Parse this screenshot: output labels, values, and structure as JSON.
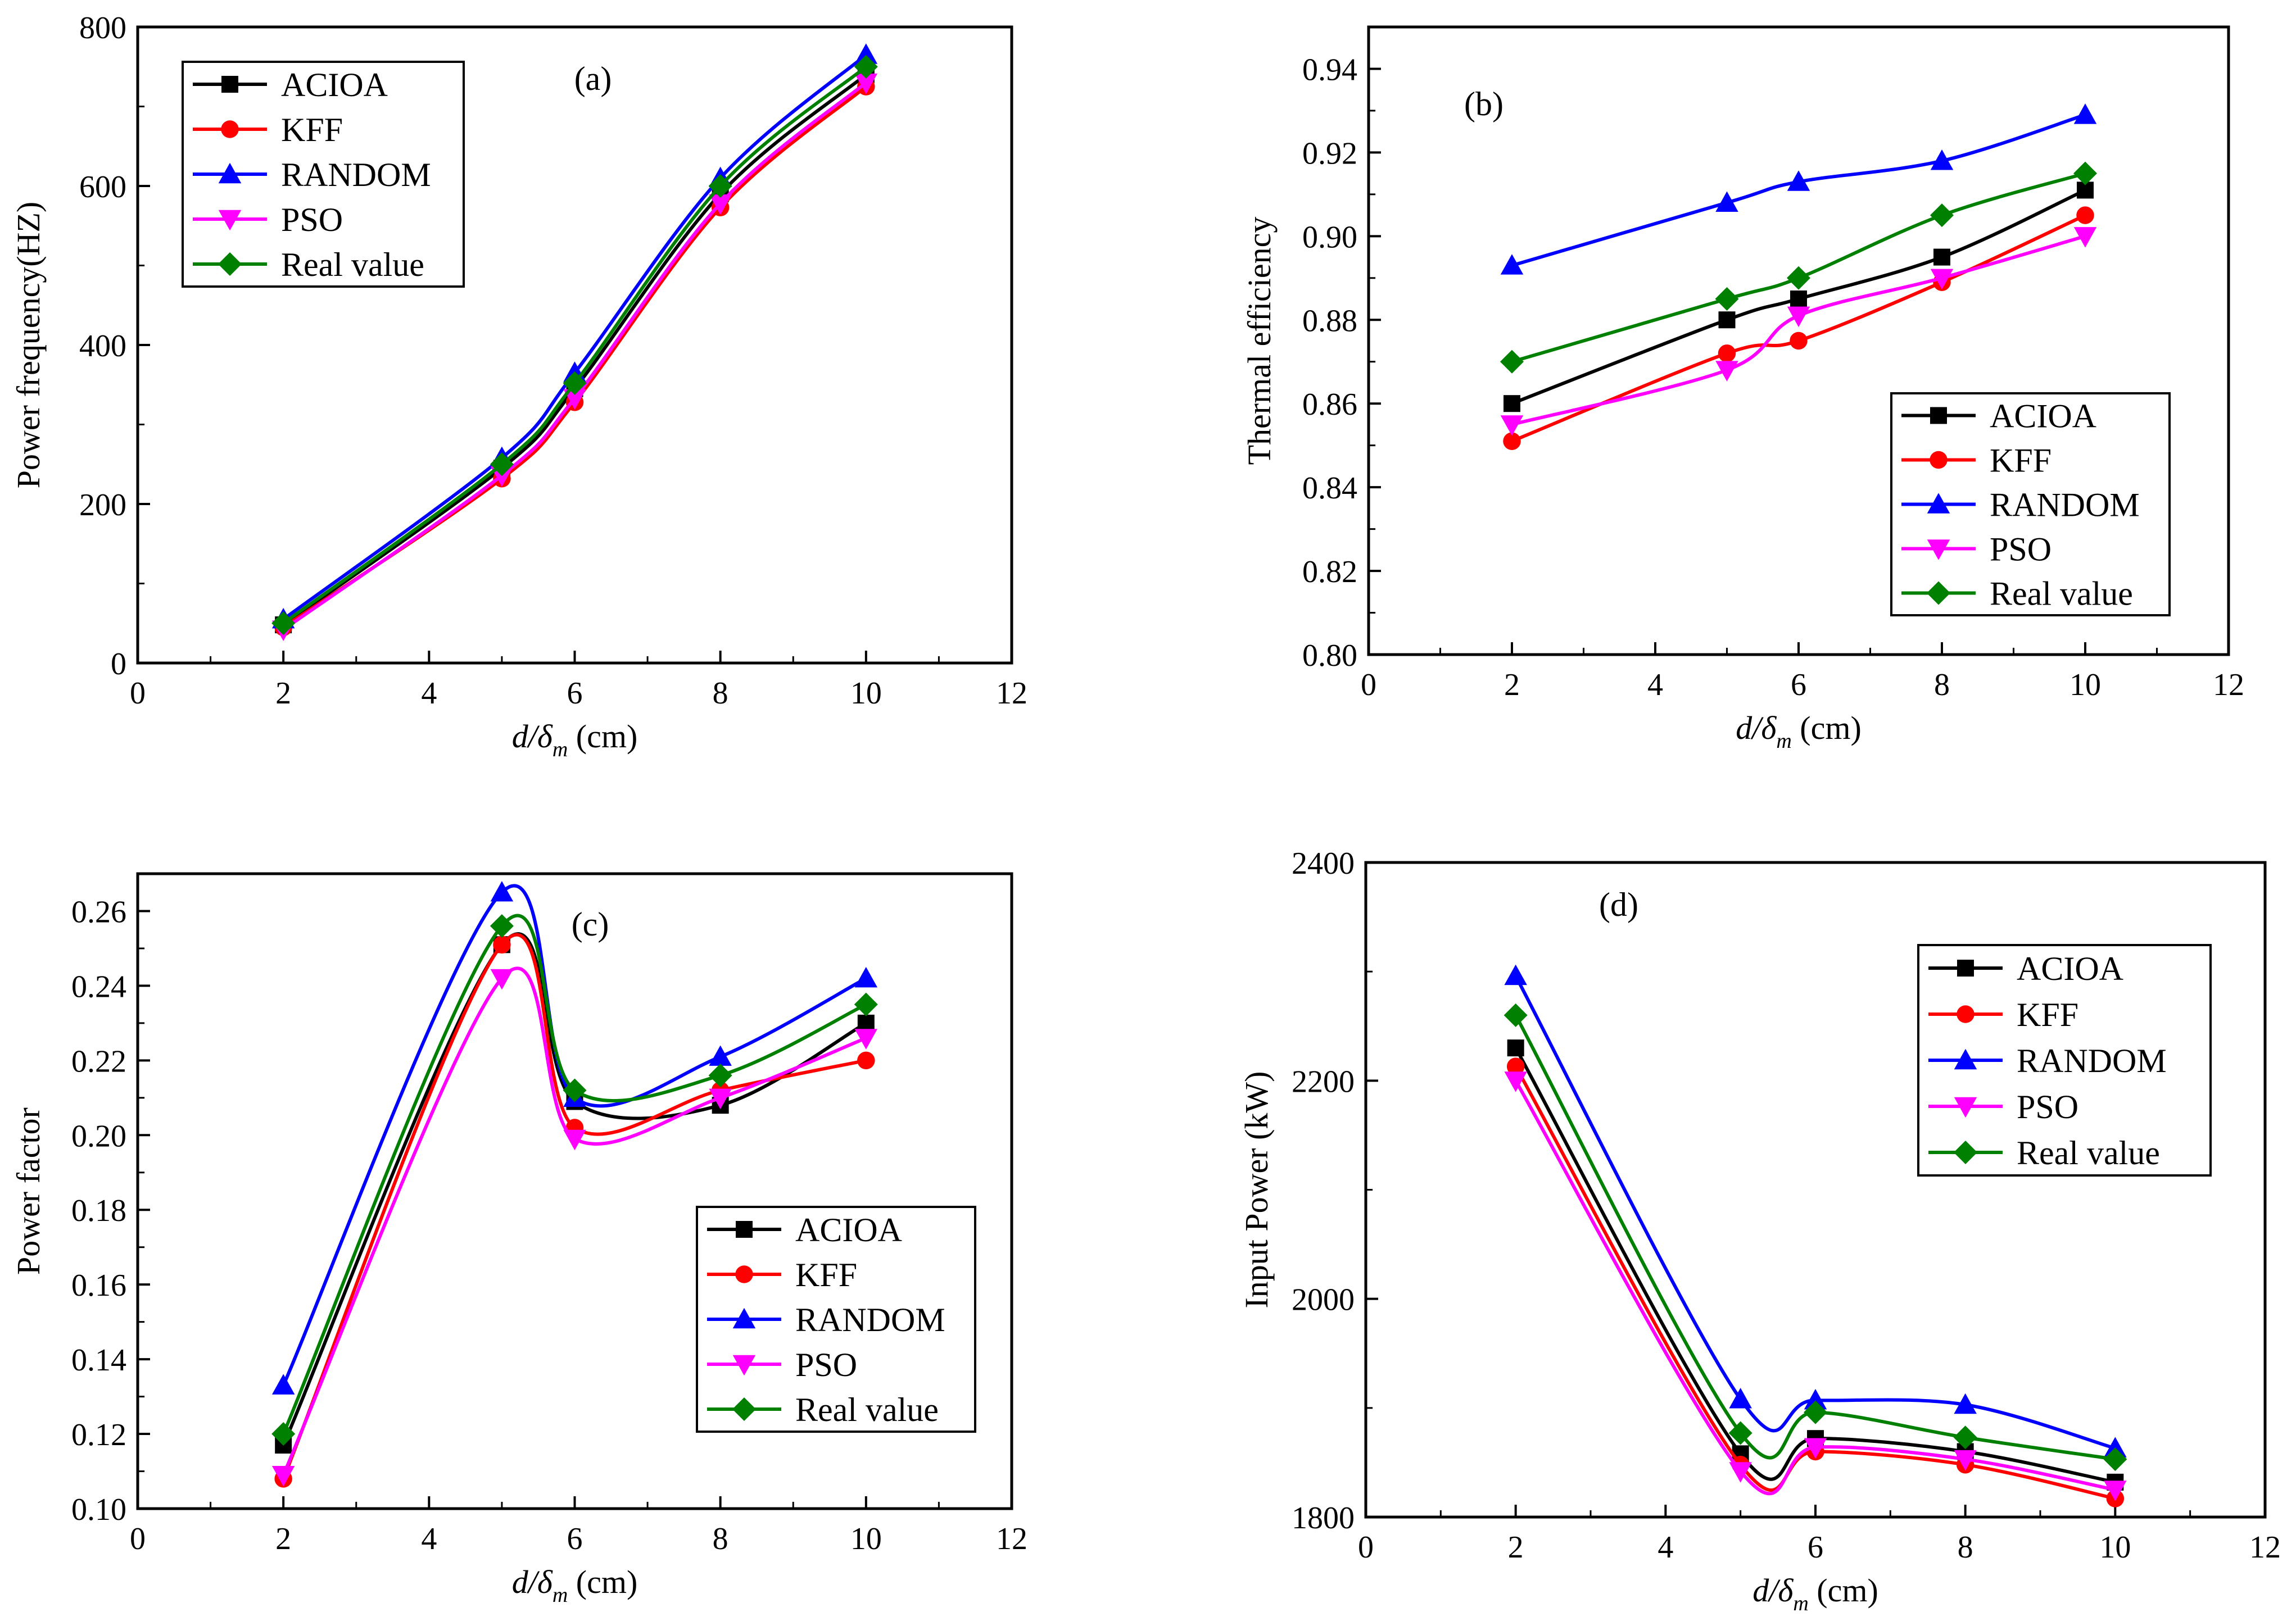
{
  "figure": {
    "description_free": true
  },
  "chart_data": [
    {
      "type": "line",
      "panel_label": "(a)",
      "xlabel_main": "d/δ",
      "xlabel_sub": "m",
      "xlabel_unit": "(cm)",
      "ylabel": "Power frequency(HZ)",
      "xlim": [
        0,
        12
      ],
      "ylim": [
        0,
        800
      ],
      "xticks": [
        0,
        2,
        4,
        6,
        8,
        10,
        12
      ],
      "yticks": [
        0,
        200,
        400,
        600,
        800
      ],
      "ytick_decimals": 0,
      "legend_position": "top-left",
      "x": [
        2,
        5,
        6,
        8,
        10
      ],
      "series": [
        {
          "name": "ACIOA",
          "color": "#000000",
          "marker": "square",
          "values": [
            48,
            245,
            345,
            590,
            740
          ]
        },
        {
          "name": "KFF",
          "color": "#ff0000",
          "marker": "circle",
          "values": [
            45,
            232,
            328,
            573,
            725
          ]
        },
        {
          "name": "RANDOM",
          "color": "#0000ff",
          "marker": "triangle-up",
          "values": [
            55,
            258,
            365,
            610,
            765
          ]
        },
        {
          "name": "PSO",
          "color": "#ff00ff",
          "marker": "triangle-down",
          "values": [
            42,
            236,
            333,
            578,
            730
          ]
        },
        {
          "name": "Real value",
          "color": "#008000",
          "marker": "diamond",
          "values": [
            50,
            250,
            352,
            600,
            750
          ]
        }
      ]
    },
    {
      "type": "line",
      "panel_label": "(b)",
      "xlabel_main": "d/δ",
      "xlabel_sub": "m",
      "xlabel_unit": "(cm)",
      "ylabel": "Thermal efficiency",
      "xlim": [
        0,
        12
      ],
      "ylim": [
        0.8,
        0.95
      ],
      "xticks": [
        0,
        2,
        4,
        6,
        8,
        10,
        12
      ],
      "yticks": [
        0.8,
        0.82,
        0.84,
        0.86,
        0.88,
        0.9,
        0.92,
        0.94
      ],
      "ytick_decimals": 2,
      "legend_position": "bottom-right",
      "x": [
        2,
        5,
        6,
        8,
        10
      ],
      "series": [
        {
          "name": "ACIOA",
          "color": "#000000",
          "marker": "square",
          "values": [
            0.86,
            0.88,
            0.885,
            0.895,
            0.911
          ]
        },
        {
          "name": "KFF",
          "color": "#ff0000",
          "marker": "circle",
          "values": [
            0.851,
            0.872,
            0.875,
            0.889,
            0.905
          ]
        },
        {
          "name": "RANDOM",
          "color": "#0000ff",
          "marker": "triangle-up",
          "values": [
            0.893,
            0.908,
            0.913,
            0.918,
            0.929
          ]
        },
        {
          "name": "PSO",
          "color": "#ff00ff",
          "marker": "triangle-down",
          "values": [
            0.855,
            0.868,
            0.881,
            0.89,
            0.9
          ]
        },
        {
          "name": "Real value",
          "color": "#008000",
          "marker": "diamond",
          "values": [
            0.87,
            0.885,
            0.89,
            0.905,
            0.915
          ]
        }
      ]
    },
    {
      "type": "line",
      "panel_label": "(c)",
      "xlabel_main": "d/δ",
      "xlabel_sub": "m",
      "xlabel_unit": "(cm)",
      "ylabel": "Power factor",
      "xlim": [
        0,
        12
      ],
      "ylim": [
        0.1,
        0.27
      ],
      "xticks": [
        0,
        2,
        4,
        6,
        8,
        10,
        12
      ],
      "yticks": [
        0.1,
        0.12,
        0.14,
        0.16,
        0.18,
        0.2,
        0.22,
        0.24,
        0.26
      ],
      "ytick_decimals": 2,
      "legend_position": "bottom-right",
      "x": [
        2,
        5,
        6,
        8,
        10
      ],
      "series": [
        {
          "name": "ACIOA",
          "color": "#000000",
          "marker": "square",
          "values": [
            0.117,
            0.251,
            0.209,
            0.208,
            0.23
          ]
        },
        {
          "name": "KFF",
          "color": "#ff0000",
          "marker": "circle",
          "values": [
            0.108,
            0.251,
            0.202,
            0.212,
            0.22
          ]
        },
        {
          "name": "RANDOM",
          "color": "#0000ff",
          "marker": "triangle-up",
          "values": [
            0.133,
            0.265,
            0.21,
            0.221,
            0.242
          ]
        },
        {
          "name": "PSO",
          "color": "#ff00ff",
          "marker": "triangle-down",
          "values": [
            0.109,
            0.242,
            0.199,
            0.21,
            0.226
          ]
        },
        {
          "name": "Real value",
          "color": "#008000",
          "marker": "diamond",
          "values": [
            0.12,
            0.256,
            0.212,
            0.216,
            0.235
          ]
        }
      ]
    },
    {
      "type": "line",
      "panel_label": "(d)",
      "xlabel_main": "d/δ",
      "xlabel_sub": "m",
      "xlabel_unit": "(cm)",
      "ylabel": "Input Power (kW)",
      "xlim": [
        0,
        12
      ],
      "ylim": [
        1800,
        2400
      ],
      "xticks": [
        0,
        2,
        4,
        6,
        8,
        10,
        12
      ],
      "yticks": [
        1800,
        2000,
        2200,
        2400
      ],
      "ytick_decimals": 0,
      "legend_position": "top-right",
      "x": [
        2,
        5,
        6,
        8,
        10
      ],
      "series": [
        {
          "name": "ACIOA",
          "color": "#000000",
          "marker": "square",
          "values": [
            2230,
            1858,
            1872,
            1860,
            1832
          ]
        },
        {
          "name": "KFF",
          "color": "#ff0000",
          "marker": "circle",
          "values": [
            2213,
            1848,
            1860,
            1848,
            1817
          ]
        },
        {
          "name": "RANDOM",
          "color": "#0000ff",
          "marker": "triangle-up",
          "values": [
            2296,
            1908,
            1907,
            1903,
            1863
          ]
        },
        {
          "name": "PSO",
          "color": "#ff00ff",
          "marker": "triangle-down",
          "values": [
            2200,
            1842,
            1864,
            1853,
            1825
          ]
        },
        {
          "name": "Real value",
          "color": "#008000",
          "marker": "diamond",
          "values": [
            2260,
            1877,
            1896,
            1873,
            1853
          ]
        }
      ]
    }
  ]
}
